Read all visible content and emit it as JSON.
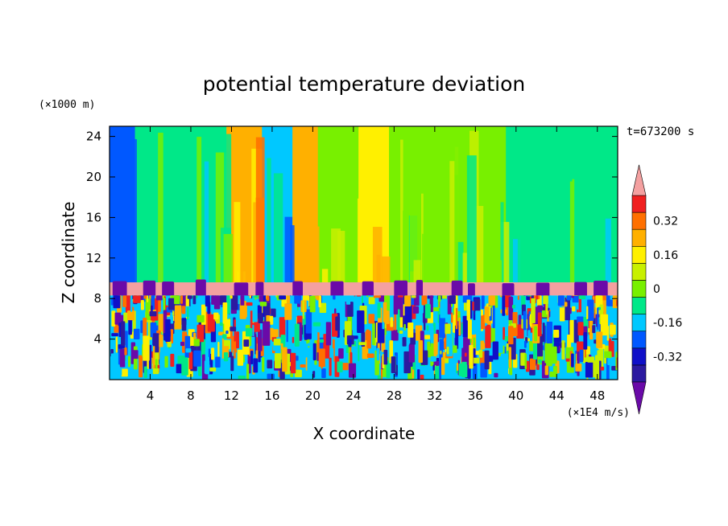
{
  "chart_data": {
    "type": "heatmap",
    "title": "potential temperature deviation",
    "xlabel": "X coordinate",
    "ylabel": "Z coordinate",
    "x_unit": "(×1E4 m/s)",
    "y_unit": "(×1000 m)",
    "time_label": "t=673200 s",
    "xlim": [
      0,
      50
    ],
    "ylim": [
      0,
      25
    ],
    "x_ticks": [
      4,
      8,
      12,
      16,
      20,
      24,
      28,
      32,
      36,
      40,
      44,
      48
    ],
    "y_ticks": [
      4,
      8,
      12,
      16,
      20,
      24
    ],
    "colorbar": {
      "levels": [
        -0.48,
        -0.4,
        -0.32,
        -0.24,
        -0.16,
        -0.08,
        0,
        0.08,
        0.16,
        0.24,
        0.32,
        0.4,
        0.48
      ],
      "colors": [
        "#6a0aa8",
        "#2c1aa0",
        "#1010c8",
        "#0058ff",
        "#00c8ff",
        "#00e888",
        "#78f000",
        "#c8f000",
        "#fff000",
        "#ffb000",
        "#ff7000",
        "#f02020",
        "#f4a0a0"
      ],
      "tick_labels": [
        "-0.32",
        "-0.16",
        "0",
        "0.16",
        "0.32"
      ],
      "tick_values": [
        -0.32,
        -0.16,
        0,
        0.16,
        0.32
      ]
    },
    "field_summary": {
      "upper_region_z": [
        9.6,
        25
      ],
      "upper_columns": [
        {
          "x": [
            0,
            2.5
          ],
          "value": -0.2
        },
        {
          "x": [
            2.5,
            11.5
          ],
          "value": -0.06
        },
        {
          "x": [
            11.5,
            15
          ],
          "value": 0.22
        },
        {
          "x": [
            15,
            18
          ],
          "value": -0.18
        },
        {
          "x": [
            18,
            20.5
          ],
          "value": 0.26
        },
        {
          "x": [
            20.5,
            24.5
          ],
          "value": 0.04
        },
        {
          "x": [
            24.5,
            27.5
          ],
          "value": 0.14
        },
        {
          "x": [
            27.5,
            39
          ],
          "value": 0.02
        },
        {
          "x": [
            39,
            50
          ],
          "value": -0.06
        }
      ],
      "pink_band_z": [
        8.3,
        9.6
      ],
      "purple_bumps_z": [
        8.3,
        9.9
      ],
      "lower_turbulent_z": [
        0,
        8.3
      ]
    }
  }
}
